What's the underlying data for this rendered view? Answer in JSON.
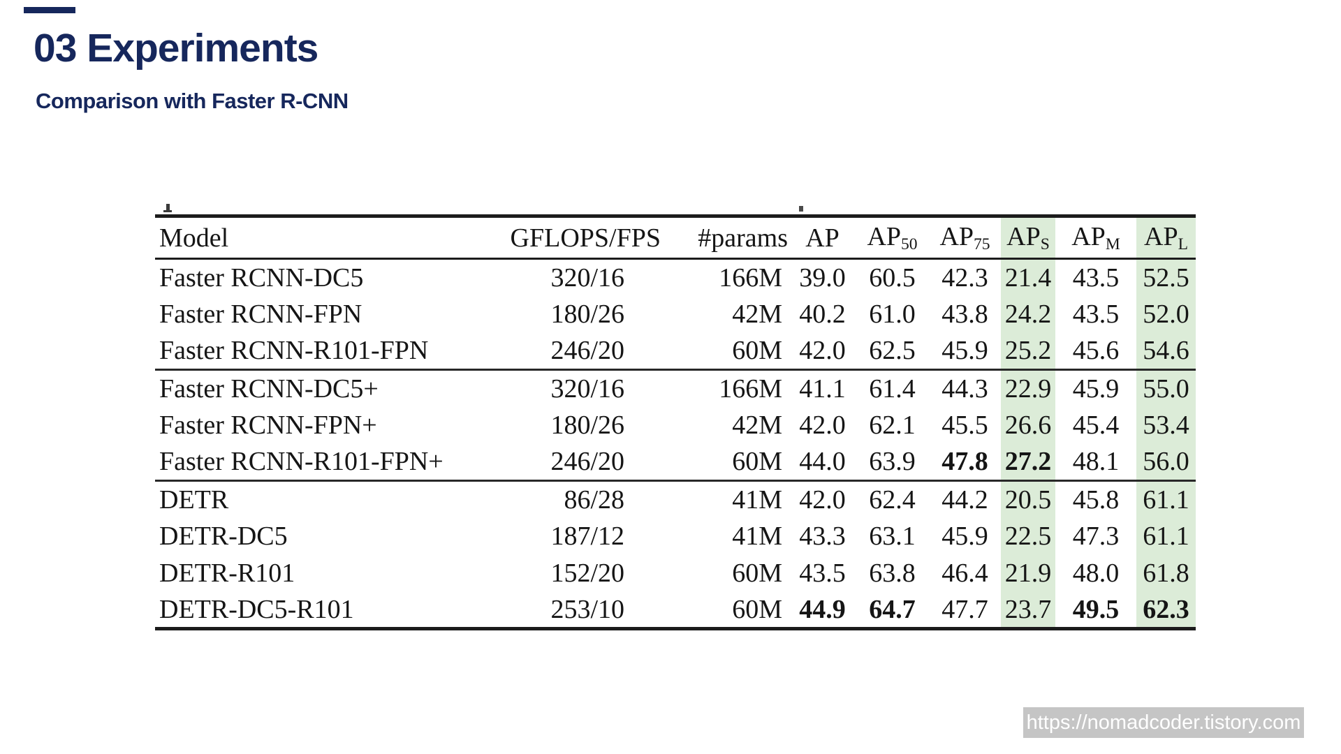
{
  "slide": {
    "title": "03 Experiments",
    "subtitle": "Comparison with Faster R-CNN",
    "watermark_url": "https://nomadcoder.tistory.com",
    "accent_color": "#16275c",
    "highlight_color": "#dcecd8",
    "watermark_bg_color": "#c5c5c5"
  },
  "table": {
    "columns": [
      {
        "label": "Model",
        "sub": "",
        "highlight": false
      },
      {
        "label": "GFLOPS/FPS",
        "sub": "",
        "highlight": false
      },
      {
        "label": "#params",
        "sub": "",
        "highlight": false
      },
      {
        "label": "AP",
        "sub": "",
        "highlight": false
      },
      {
        "label": "AP",
        "sub": "50",
        "highlight": false
      },
      {
        "label": "AP",
        "sub": "75",
        "highlight": false
      },
      {
        "label": "AP",
        "sub": "S",
        "highlight": true
      },
      {
        "label": "AP",
        "sub": "M",
        "highlight": false
      },
      {
        "label": "AP",
        "sub": "L",
        "highlight": true
      }
    ],
    "groups": [
      {
        "rows": [
          {
            "model": "Faster RCNN-DC5",
            "values": [
              "320/16",
              "166M",
              "39.0",
              "60.5",
              "42.3",
              "21.4",
              "43.5",
              "52.5"
            ],
            "bold": []
          },
          {
            "model": "Faster RCNN-FPN",
            "values": [
              "180/26",
              "42M",
              "40.2",
              "61.0",
              "43.8",
              "24.2",
              "43.5",
              "52.0"
            ],
            "bold": []
          },
          {
            "model": "Faster RCNN-R101-FPN",
            "values": [
              "246/20",
              "60M",
              "42.0",
              "62.5",
              "45.9",
              "25.2",
              "45.6",
              "54.6"
            ],
            "bold": []
          }
        ]
      },
      {
        "rows": [
          {
            "model": "Faster RCNN-DC5+",
            "values": [
              "320/16",
              "166M",
              "41.1",
              "61.4",
              "44.3",
              "22.9",
              "45.9",
              "55.0"
            ],
            "bold": []
          },
          {
            "model": "Faster RCNN-FPN+",
            "values": [
              "180/26",
              "42M",
              "42.0",
              "62.1",
              "45.5",
              "26.6",
              "45.4",
              "53.4"
            ],
            "bold": []
          },
          {
            "model": "Faster RCNN-R101-FPN+",
            "values": [
              "246/20",
              "60M",
              "44.0",
              "63.9",
              "47.8",
              "27.2",
              "48.1",
              "56.0"
            ],
            "bold": [
              4,
              5
            ]
          }
        ]
      },
      {
        "rows": [
          {
            "model": "DETR",
            "values": [
              "86/28",
              "41M",
              "42.0",
              "62.4",
              "44.2",
              "20.5",
              "45.8",
              "61.1"
            ],
            "bold": []
          },
          {
            "model": "DETR-DC5",
            "values": [
              "187/12",
              "41M",
              "43.3",
              "63.1",
              "45.9",
              "22.5",
              "47.3",
              "61.1"
            ],
            "bold": []
          },
          {
            "model": "DETR-R101",
            "values": [
              "152/20",
              "60M",
              "43.5",
              "63.8",
              "46.4",
              "21.9",
              "48.0",
              "61.8"
            ],
            "bold": []
          },
          {
            "model": "DETR-DC5-R101",
            "values": [
              "253/10",
              "60M",
              "44.9",
              "64.7",
              "47.7",
              "23.7",
              "49.5",
              "62.3"
            ],
            "bold": [
              2,
              3,
              6,
              7
            ]
          }
        ]
      }
    ]
  }
}
